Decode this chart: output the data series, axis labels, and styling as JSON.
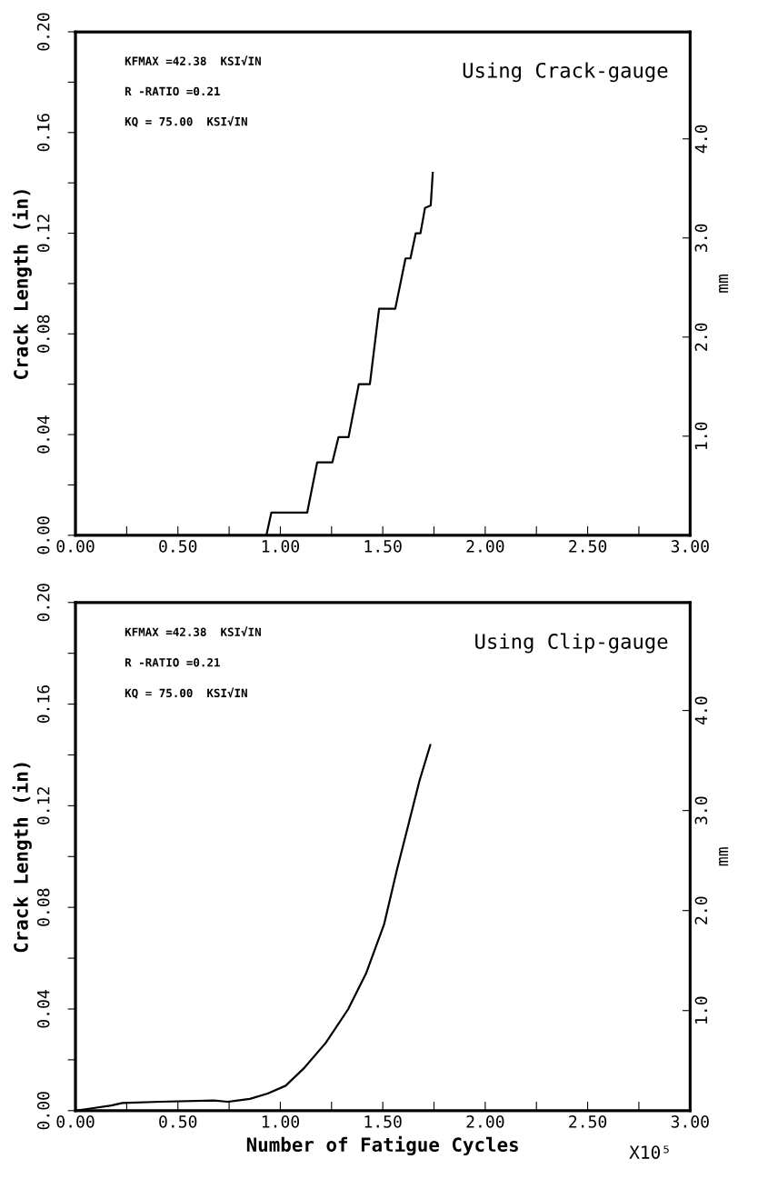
{
  "chart_data": [
    {
      "type": "line",
      "title": "Using Crack-gauge",
      "ylabel": "Crack Length (in)",
      "y2label": "mm",
      "annotations": [
        "KFMAX =42.38  KSI√IN",
        "R -RATIO =0.21",
        "KQ = 75.00  KSI√IN"
      ],
      "xlim": [
        0,
        3
      ],
      "xticks": [
        {
          "value": 0,
          "label": "0.00"
        },
        {
          "value": 0.25,
          "label": null
        },
        {
          "value": 0.5,
          "label": "0.50"
        },
        {
          "value": 0.75,
          "label": null
        },
        {
          "value": 1,
          "label": "1.00"
        },
        {
          "value": 1.25,
          "label": null
        },
        {
          "value": 1.5,
          "label": "1.50"
        },
        {
          "value": 1.75,
          "label": null
        },
        {
          "value": 2,
          "label": "2.00"
        },
        {
          "value": 2.25,
          "label": null
        },
        {
          "value": 2.5,
          "label": "2.50"
        },
        {
          "value": 2.75,
          "label": null
        },
        {
          "value": 3,
          "label": "3.00"
        }
      ],
      "ylim": [
        0,
        0.2
      ],
      "yticks": [
        {
          "value": 0,
          "label": "0.00"
        },
        {
          "value": 0.02,
          "label": null
        },
        {
          "value": 0.04,
          "label": "0.04"
        },
        {
          "value": 0.06,
          "label": null
        },
        {
          "value": 0.08,
          "label": "0.08"
        },
        {
          "value": 0.1,
          "label": null
        },
        {
          "value": 0.12,
          "label": "0.12"
        },
        {
          "value": 0.14,
          "label": null
        },
        {
          "value": 0.16,
          "label": "0.16"
        },
        {
          "value": 0.18,
          "label": null
        },
        {
          "value": 0.2,
          "label": "0.20"
        }
      ],
      "y2lim": [
        0,
        5.08
      ],
      "y2ticks": [
        {
          "value": 1,
          "label": "1.0"
        },
        {
          "value": 2,
          "label": "2.0"
        },
        {
          "value": 3,
          "label": "3.0"
        },
        {
          "value": 4,
          "label": "4.0"
        }
      ],
      "grid": false,
      "legend": false,
      "series": [
        {
          "color": "#000000",
          "x": [
            0.932,
            0.956,
            1.131,
            1.18,
            1.254,
            1.284,
            1.333,
            1.383,
            1.437,
            1.482,
            1.561,
            1.611,
            1.635,
            1.661,
            1.684,
            1.706,
            1.734,
            1.744
          ],
          "values": [
            0,
            0.009,
            0.009,
            0.029,
            0.029,
            0.039,
            0.039,
            0.06,
            0.06,
            0.09,
            0.09,
            0.11,
            0.11,
            0.12,
            0.12,
            0.13,
            0.131,
            0.144
          ]
        }
      ]
    },
    {
      "type": "line",
      "title": "Using Clip-gauge",
      "xlabel": "Number of Fatigue Cycles",
      "ylabel": "Crack Length (in)",
      "y2label": "mm",
      "annotations": [
        "KFMAX =42.38  KSI√IN",
        "R -RATIO =0.21",
        "KQ = 75.00  KSI√IN",
        "X10⁵"
      ],
      "xlim": [
        0,
        3
      ],
      "xticks": [
        {
          "value": 0,
          "label": "0.00"
        },
        {
          "value": 0.25,
          "label": null
        },
        {
          "value": 0.5,
          "label": "0.50"
        },
        {
          "value": 0.75,
          "label": null
        },
        {
          "value": 1,
          "label": "1.00"
        },
        {
          "value": 1.25,
          "label": null
        },
        {
          "value": 1.5,
          "label": "1.50"
        },
        {
          "value": 1.75,
          "label": null
        },
        {
          "value": 2,
          "label": "2.00"
        },
        {
          "value": 2.25,
          "label": null
        },
        {
          "value": 2.5,
          "label": "2.50"
        },
        {
          "value": 2.75,
          "label": null
        },
        {
          "value": 3,
          "label": "3.00"
        }
      ],
      "ylim": [
        0,
        0.2
      ],
      "yticks": [
        {
          "value": 0,
          "label": "0.00"
        },
        {
          "value": 0.02,
          "label": null
        },
        {
          "value": 0.04,
          "label": "0.04"
        },
        {
          "value": 0.06,
          "label": null
        },
        {
          "value": 0.08,
          "label": "0.08"
        },
        {
          "value": 0.1,
          "label": null
        },
        {
          "value": 0.12,
          "label": "0.12"
        },
        {
          "value": 0.14,
          "label": null
        },
        {
          "value": 0.16,
          "label": "0.16"
        },
        {
          "value": 0.18,
          "label": null
        },
        {
          "value": 0.2,
          "label": "0.20"
        }
      ],
      "y2lim": [
        0,
        5.08
      ],
      "y2ticks": [
        {
          "value": 1,
          "label": "1.0"
        },
        {
          "value": 2,
          "label": "2.0"
        },
        {
          "value": 3,
          "label": "3.0"
        },
        {
          "value": 4,
          "label": "4.0"
        }
      ],
      "grid": false,
      "legend": false,
      "series": [
        {
          "color": "#000000",
          "x": [
            0,
            0.087,
            0.175,
            0.229,
            0.415,
            0.676,
            0.742,
            0.851,
            0.938,
            1.026,
            1.113,
            1.222,
            1.331,
            1.418,
            1.506,
            1.569,
            1.629,
            1.679,
            1.732
          ],
          "values": [
            0,
            0.001,
            0.002,
            0.003,
            0.0035,
            0.004,
            0.0035,
            0.0046,
            0.0067,
            0.0098,
            0.0165,
            0.0267,
            0.0399,
            0.0539,
            0.0732,
            0.0947,
            0.1138,
            0.1298,
            0.1439
          ]
        }
      ]
    }
  ]
}
